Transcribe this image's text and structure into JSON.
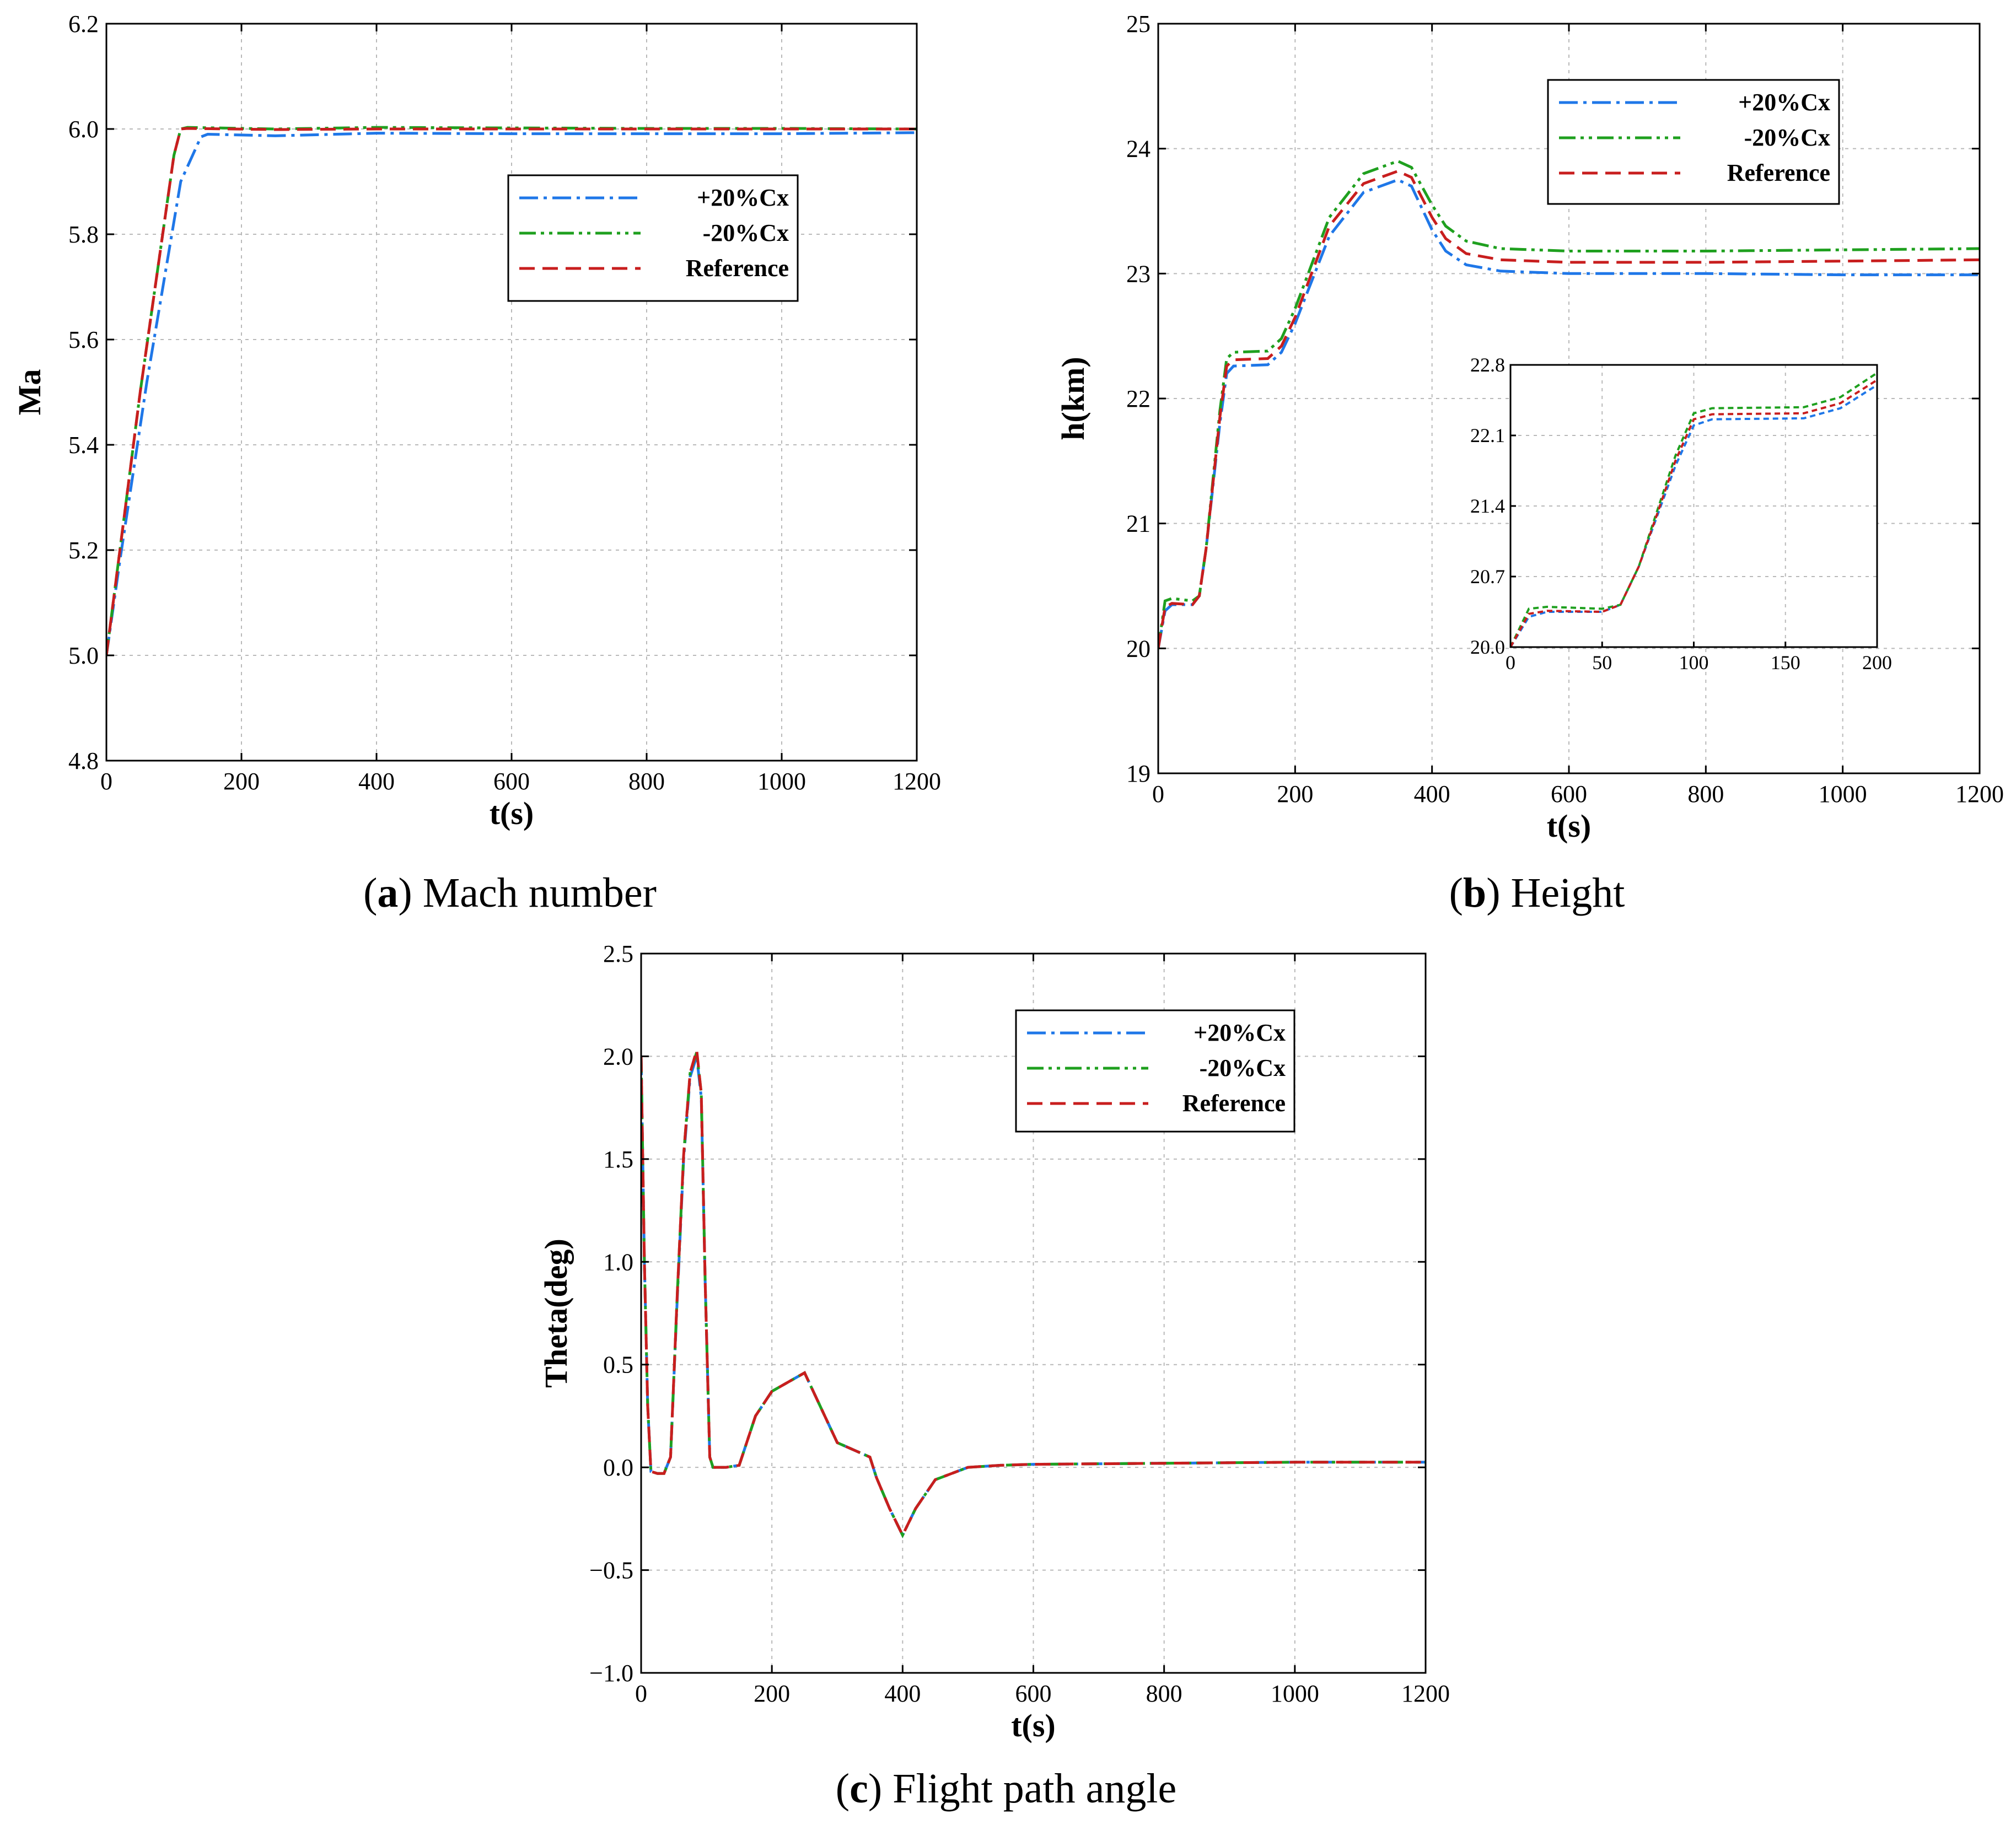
{
  "colors": {
    "plus20": "#1f77e8",
    "minus20": "#1fa01f",
    "reference": "#c81e1e"
  },
  "chart_data": [
    {
      "id": "a",
      "type": "line",
      "caption_letter": "a",
      "caption_text": "Mach number",
      "xlabel": "t(s)",
      "ylabel": "Ma",
      "xlim": [
        0,
        1200
      ],
      "ylim": [
        4.8,
        6.2
      ],
      "xticks": [
        "0",
        "200",
        "400",
        "600",
        "800",
        "1000",
        "1200"
      ],
      "yticks": [
        "4.8",
        "5.0",
        "5.2",
        "5.4",
        "5.6",
        "5.8",
        "6.0",
        "6.2"
      ],
      "grid": true,
      "legend_position": "upper-right",
      "series": [
        {
          "name": "+20%Cx",
          "key": "plus20",
          "x": [
            0,
            20,
            60,
            110,
            140,
            150,
            250,
            400,
            600,
            800,
            1000,
            1200
          ],
          "y": [
            5.0,
            5.18,
            5.52,
            5.9,
            5.985,
            5.99,
            5.987,
            5.992,
            5.991,
            5.991,
            5.991,
            5.993
          ]
        },
        {
          "name": "-20%Cx",
          "key": "minus20",
          "x": [
            0,
            15,
            50,
            100,
            110,
            120,
            250,
            400,
            600,
            800,
            1000,
            1200
          ],
          "y": [
            5.0,
            5.15,
            5.5,
            5.95,
            6.0,
            6.003,
            6.0,
            6.003,
            6.002,
            6.001,
            6.001,
            6.0
          ]
        },
        {
          "name": "Reference",
          "key": "reference",
          "x": [
            0,
            15,
            50,
            100,
            110,
            120,
            250,
            400,
            600,
            800,
            1000,
            1200
          ],
          "y": [
            5.0,
            5.15,
            5.5,
            5.95,
            6.0,
            6.001,
            5.999,
            6.0,
            6.0,
            6.0,
            6.0,
            6.0
          ]
        }
      ]
    },
    {
      "id": "b",
      "type": "line",
      "caption_letter": "b",
      "caption_text": "Height",
      "xlabel": "t(s)",
      "ylabel": "h(km)",
      "xlim": [
        0,
        1200
      ],
      "ylim": [
        19,
        25
      ],
      "xticks": [
        "0",
        "200",
        "400",
        "600",
        "800",
        "1000",
        "1200"
      ],
      "yticks": [
        "19",
        "20",
        "21",
        "22",
        "23",
        "24",
        "25"
      ],
      "grid": true,
      "legend_position": "upper-right",
      "series": [
        {
          "name": "+20%Cx",
          "key": "plus20",
          "x": [
            0,
            10,
            20,
            50,
            60,
            70,
            80,
            90,
            100,
            110,
            160,
            180,
            200,
            250,
            300,
            350,
            370,
            400,
            420,
            450,
            500,
            600,
            800,
            1000,
            1200
          ],
          "y": [
            20.0,
            20.3,
            20.35,
            20.35,
            20.42,
            20.8,
            21.3,
            21.8,
            22.2,
            22.26,
            22.27,
            22.37,
            22.6,
            23.3,
            23.65,
            23.75,
            23.7,
            23.35,
            23.18,
            23.07,
            23.02,
            23.0,
            23.0,
            22.99,
            22.99
          ]
        },
        {
          "name": "-20%Cx",
          "key": "minus20",
          "x": [
            0,
            10,
            20,
            50,
            60,
            70,
            80,
            90,
            100,
            110,
            160,
            180,
            200,
            250,
            300,
            350,
            370,
            400,
            420,
            450,
            500,
            600,
            800,
            1000,
            1200
          ],
          "y": [
            20.0,
            20.38,
            20.4,
            20.38,
            20.42,
            20.8,
            21.35,
            21.9,
            22.32,
            22.37,
            22.38,
            22.48,
            22.72,
            23.45,
            23.8,
            23.9,
            23.85,
            23.55,
            23.38,
            23.26,
            23.2,
            23.18,
            23.18,
            23.19,
            23.2
          ]
        },
        {
          "name": "Reference",
          "key": "reference",
          "x": [
            0,
            10,
            20,
            50,
            60,
            70,
            80,
            90,
            100,
            110,
            160,
            180,
            200,
            250,
            300,
            350,
            370,
            400,
            420,
            450,
            500,
            600,
            800,
            1000,
            1200
          ],
          "y": [
            20.0,
            20.33,
            20.36,
            20.35,
            20.42,
            20.8,
            21.32,
            21.85,
            22.26,
            22.31,
            22.32,
            22.42,
            22.65,
            23.38,
            23.72,
            23.82,
            23.77,
            23.45,
            23.28,
            23.16,
            23.11,
            23.09,
            23.09,
            23.1,
            23.11
          ]
        }
      ],
      "inset": {
        "xlim": [
          0,
          200
        ],
        "ylim": [
          20.0,
          22.8
        ],
        "xticks": [
          "0",
          "50",
          "100",
          "150",
          "200"
        ],
        "yticks": [
          "20.0",
          "20.7",
          "21.4",
          "22.1",
          "22.8"
        ]
      }
    },
    {
      "id": "c",
      "type": "line",
      "caption_letter": "c",
      "caption_text": "Flight path angle",
      "xlabel": "t(s)",
      "ylabel": "Theta(deg)",
      "xlim": [
        0,
        1200
      ],
      "ylim": [
        -1.0,
        2.5
      ],
      "xticks": [
        "0",
        "200",
        "400",
        "600",
        "800",
        "1000",
        "1200"
      ],
      "yticks": [
        "−1.0",
        "−0.5",
        "0.0",
        "0.5",
        "1.0",
        "1.5",
        "2.0",
        "2.5"
      ],
      "grid": true,
      "legend_position": "upper-right",
      "series": [
        {
          "name": "+20%Cx",
          "key": "plus20",
          "x": [
            0,
            5,
            10,
            15,
            25,
            35,
            45,
            55,
            65,
            75,
            85,
            92,
            98,
            105,
            110,
            130,
            150,
            175,
            200,
            250,
            300,
            350,
            360,
            380,
            400,
            420,
            450,
            500,
            550,
            600,
            800,
            1000,
            1200
          ],
          "y": [
            2.0,
            1.0,
            0.3,
            -0.02,
            -0.03,
            -0.03,
            0.05,
            0.8,
            1.5,
            1.9,
            2.0,
            1.8,
            0.9,
            0.05,
            0.0,
            0.0,
            0.01,
            0.25,
            0.37,
            0.46,
            0.12,
            0.05,
            -0.05,
            -0.2,
            -0.33,
            -0.2,
            -0.06,
            0.0,
            0.01,
            0.015,
            0.02,
            0.025,
            0.025
          ]
        },
        {
          "name": "-20%Cx",
          "key": "minus20",
          "x": [
            0,
            5,
            10,
            15,
            25,
            35,
            45,
            55,
            65,
            75,
            85,
            92,
            98,
            105,
            110,
            130,
            150,
            175,
            200,
            250,
            300,
            350,
            360,
            380,
            400,
            420,
            450,
            500,
            550,
            600,
            800,
            1000,
            1200
          ],
          "y": [
            2.0,
            1.0,
            0.3,
            -0.02,
            -0.03,
            -0.03,
            0.05,
            0.82,
            1.52,
            1.92,
            2.02,
            1.82,
            0.9,
            0.05,
            0.0,
            0.0,
            0.01,
            0.25,
            0.37,
            0.46,
            0.12,
            0.05,
            -0.05,
            -0.2,
            -0.33,
            -0.2,
            -0.06,
            0.0,
            0.01,
            0.015,
            0.02,
            0.025,
            0.025
          ]
        },
        {
          "name": "Reference",
          "key": "reference",
          "x": [
            0,
            5,
            10,
            15,
            25,
            35,
            45,
            55,
            65,
            75,
            85,
            92,
            98,
            105,
            110,
            130,
            150,
            175,
            200,
            250,
            300,
            350,
            360,
            380,
            400,
            420,
            450,
            500,
            550,
            600,
            800,
            1000,
            1200
          ],
          "y": [
            2.0,
            1.0,
            0.3,
            -0.02,
            -0.03,
            -0.03,
            0.05,
            0.82,
            1.52,
            1.92,
            2.03,
            1.82,
            0.9,
            0.05,
            0.0,
            0.0,
            0.01,
            0.25,
            0.37,
            0.46,
            0.12,
            0.05,
            -0.05,
            -0.2,
            -0.33,
            -0.2,
            -0.06,
            0.0,
            0.01,
            0.015,
            0.02,
            0.025,
            0.025
          ]
        }
      ]
    }
  ]
}
